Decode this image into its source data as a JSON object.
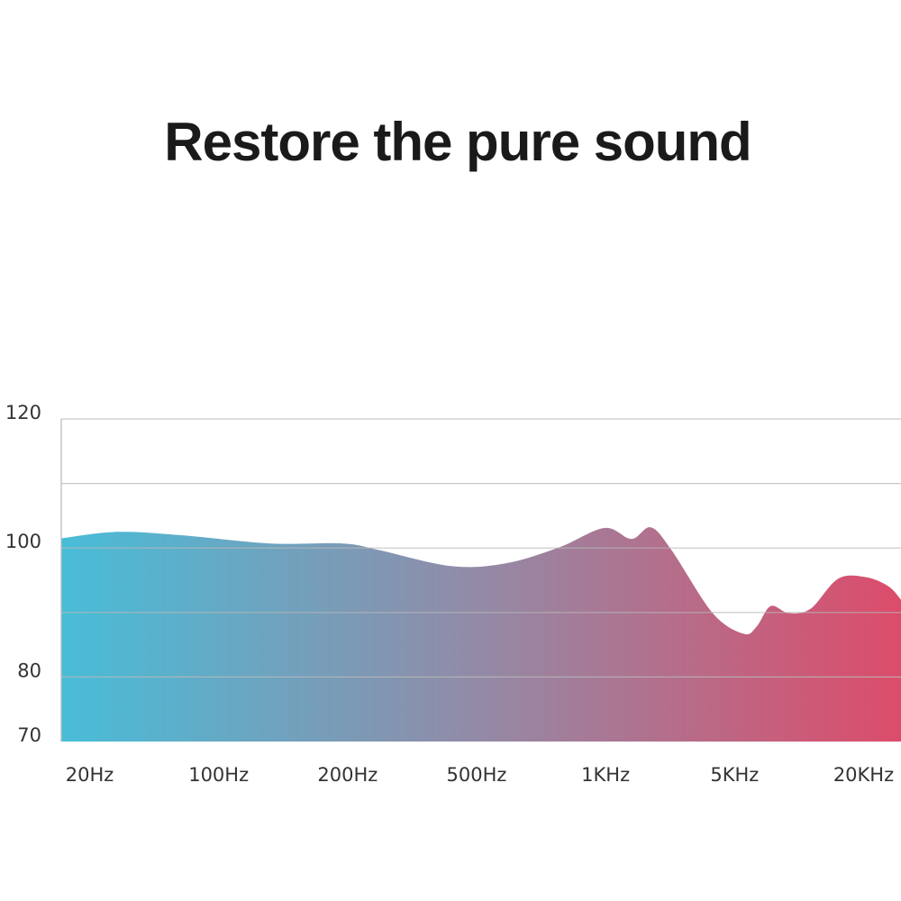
{
  "chart_data": {
    "type": "area",
    "title": "Restore the pure sound",
    "x": [
      -0.22,
      0.21,
      0.7,
      1.4,
      1.96,
      2.24,
      2.8,
      3.22,
      3.64,
      3.99,
      4.2,
      4.35,
      4.51,
      4.83,
      5.07,
      5.17,
      5.28,
      5.42,
      5.59,
      5.8,
      6.01,
      6.19,
      6.29
    ],
    "values": [
      101.5,
      102.5,
      102,
      100.7,
      100.7,
      99.7,
      97.2,
      97.6,
      100.1,
      103.1,
      101.4,
      103.2,
      99.7,
      89.9,
      86.7,
      87.8,
      91,
      89.9,
      90.6,
      95.2,
      95.5,
      94.1,
      92
    ],
    "xlim": [
      -0.22,
      6.29
    ],
    "xticks": [
      {
        "value": 0,
        "label": "20Hz"
      },
      {
        "value": 1,
        "label": "100Hz"
      },
      {
        "value": 2,
        "label": "200Hz"
      },
      {
        "value": 3,
        "label": "500Hz"
      },
      {
        "value": 4,
        "label": "1KHz"
      },
      {
        "value": 5,
        "label": "5KHz"
      },
      {
        "value": 6,
        "label": "20KHz"
      }
    ],
    "ylim": [
      70,
      120
    ],
    "yticks": [
      70,
      80,
      100,
      120
    ],
    "gridlines": [
      80,
      90,
      100,
      110,
      120
    ],
    "colors": [
      "#48bdd8",
      "#938aa6",
      "#dc4c6a"
    ]
  }
}
